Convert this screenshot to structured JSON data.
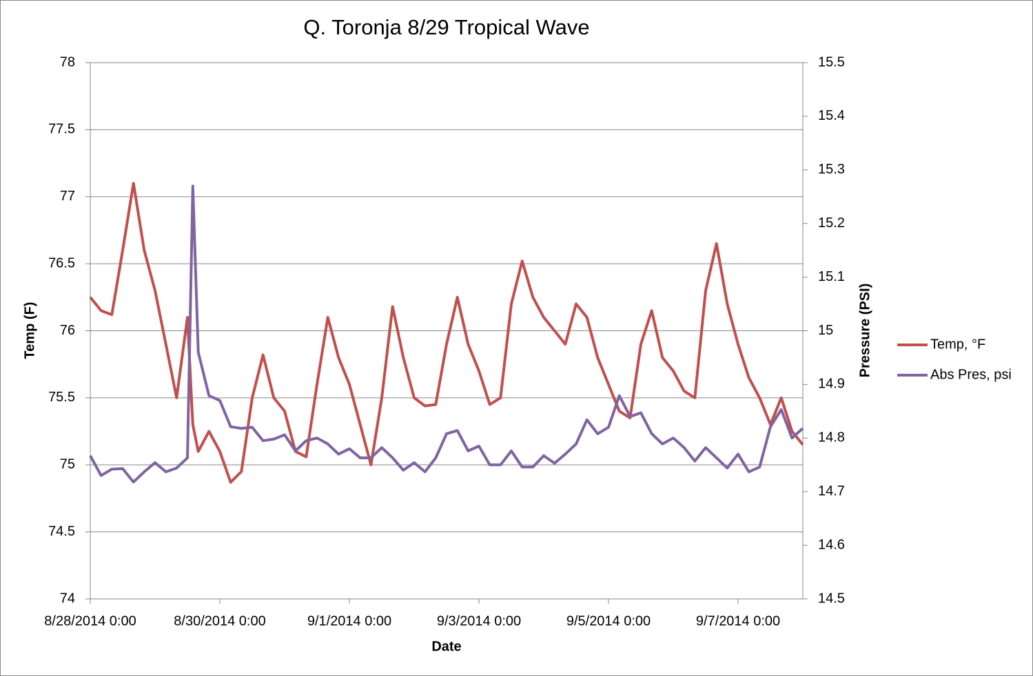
{
  "chart_data": {
    "type": "line",
    "title": "Q. Toronja 8/29 Tropical Wave",
    "xlabel": "Date",
    "ylabel": "Temp (F)",
    "y2label": "Pressure (PSI)",
    "x": [
      "8/28/2014 0:00",
      "8/28/2014 4:00",
      "8/28/2014 8:00",
      "8/28/2014 12:00",
      "8/28/2014 16:00",
      "8/28/2014 20:00",
      "8/29/2014 0:00",
      "8/29/2014 4:00",
      "8/29/2014 8:00",
      "8/29/2014 12:00",
      "8/29/2014 14:00",
      "8/29/2014 16:00",
      "8/29/2014 20:00",
      "8/30/2014 0:00",
      "8/30/2014 4:00",
      "8/30/2014 8:00",
      "8/30/2014 12:00",
      "8/30/2014 16:00",
      "8/30/2014 20:00",
      "8/31/2014 0:00",
      "8/31/2014 4:00",
      "8/31/2014 8:00",
      "8/31/2014 12:00",
      "8/31/2014 16:00",
      "8/31/2014 20:00",
      "9/1/2014 0:00",
      "9/1/2014 4:00",
      "9/1/2014 8:00",
      "9/1/2014 12:00",
      "9/1/2014 16:00",
      "9/1/2014 20:00",
      "9/2/2014 0:00",
      "9/2/2014 4:00",
      "9/2/2014 8:00",
      "9/2/2014 12:00",
      "9/2/2014 16:00",
      "9/2/2014 20:00",
      "9/3/2014 0:00",
      "9/3/2014 4:00",
      "9/3/2014 8:00",
      "9/3/2014 12:00",
      "9/3/2014 16:00",
      "9/3/2014 20:00",
      "9/4/2014 0:00",
      "9/4/2014 4:00",
      "9/4/2014 8:00",
      "9/4/2014 12:00",
      "9/4/2014 16:00",
      "9/4/2014 20:00",
      "9/5/2014 0:00",
      "9/5/2014 4:00",
      "9/5/2014 8:00",
      "9/5/2014 12:00",
      "9/5/2014 16:00",
      "9/5/2014 20:00",
      "9/6/2014 0:00",
      "9/6/2014 4:00",
      "9/6/2014 8:00",
      "9/6/2014 12:00",
      "9/6/2014 16:00",
      "9/6/2014 20:00",
      "9/7/2014 0:00",
      "9/7/2014 4:00",
      "9/7/2014 8:00",
      "9/7/2014 12:00",
      "9/7/2014 16:00",
      "9/7/2014 20:00",
      "9/8/2014 0:00"
    ],
    "series": [
      {
        "name": "Temp, °F",
        "color": "#c0504d",
        "values": [
          76.25,
          76.15,
          76.12,
          76.6,
          77.1,
          76.6,
          76.3,
          75.9,
          75.5,
          76.1,
          75.3,
          75.1,
          75.25,
          75.1,
          74.87,
          74.95,
          75.5,
          75.82,
          75.5,
          75.4,
          75.1,
          75.06,
          75.6,
          76.1,
          75.8,
          75.6,
          75.3,
          75.0,
          75.5,
          76.18,
          75.8,
          75.5,
          75.44,
          75.45,
          75.9,
          76.25,
          75.9,
          75.7,
          75.45,
          75.5,
          76.2,
          76.52,
          76.25,
          76.1,
          76.0,
          75.9,
          76.2,
          76.1,
          75.8,
          75.6,
          75.4,
          75.35,
          75.9,
          76.15,
          75.8,
          75.7,
          75.55,
          75.5,
          76.3,
          76.65,
          76.2,
          75.9,
          75.65,
          75.5,
          75.3,
          75.5,
          75.25,
          75.15
        ]
      },
      {
        "name": "Abs Pres, psi",
        "color": "#8064a2",
        "axis": "y2",
        "values": [
          14.767,
          14.73,
          14.742,
          14.743,
          14.718,
          14.737,
          14.754,
          14.737,
          14.744,
          14.763,
          15.27,
          14.96,
          14.879,
          14.87,
          14.821,
          14.818,
          14.82,
          14.795,
          14.798,
          14.806,
          14.776,
          14.795,
          14.8,
          14.789,
          14.77,
          14.78,
          14.763,
          14.763,
          14.782,
          14.763,
          14.74,
          14.754,
          14.737,
          14.763,
          14.808,
          14.814,
          14.776,
          14.785,
          14.75,
          14.75,
          14.776,
          14.746,
          14.746,
          14.767,
          14.753,
          14.77,
          14.789,
          14.834,
          14.808,
          14.82,
          14.879,
          14.84,
          14.847,
          14.808,
          14.789,
          14.8,
          14.782,
          14.757,
          14.782,
          14.763,
          14.744,
          14.77,
          14.737,
          14.746,
          14.821,
          14.853,
          14.8,
          14.818
        ]
      }
    ],
    "xlim": [
      "8/28/2014 0:00",
      "9/8/2014 0:00"
    ],
    "xticks": [
      "8/28/2014 0:00",
      "8/30/2014 0:00",
      "9/1/2014 0:00",
      "9/3/2014 0:00",
      "9/5/2014 0:00",
      "9/7/2014 0:00"
    ],
    "ylim": [
      74,
      78
    ],
    "yticks": [
      74,
      74.5,
      75,
      75.5,
      76,
      76.5,
      77,
      77.5,
      78
    ],
    "y2lim": [
      14.5,
      15.5
    ],
    "y2ticks": [
      14.5,
      14.6,
      14.7,
      14.8,
      14.9,
      15,
      15.1,
      15.2,
      15.3,
      15.4,
      15.5
    ],
    "grid": true,
    "legend": "right"
  }
}
